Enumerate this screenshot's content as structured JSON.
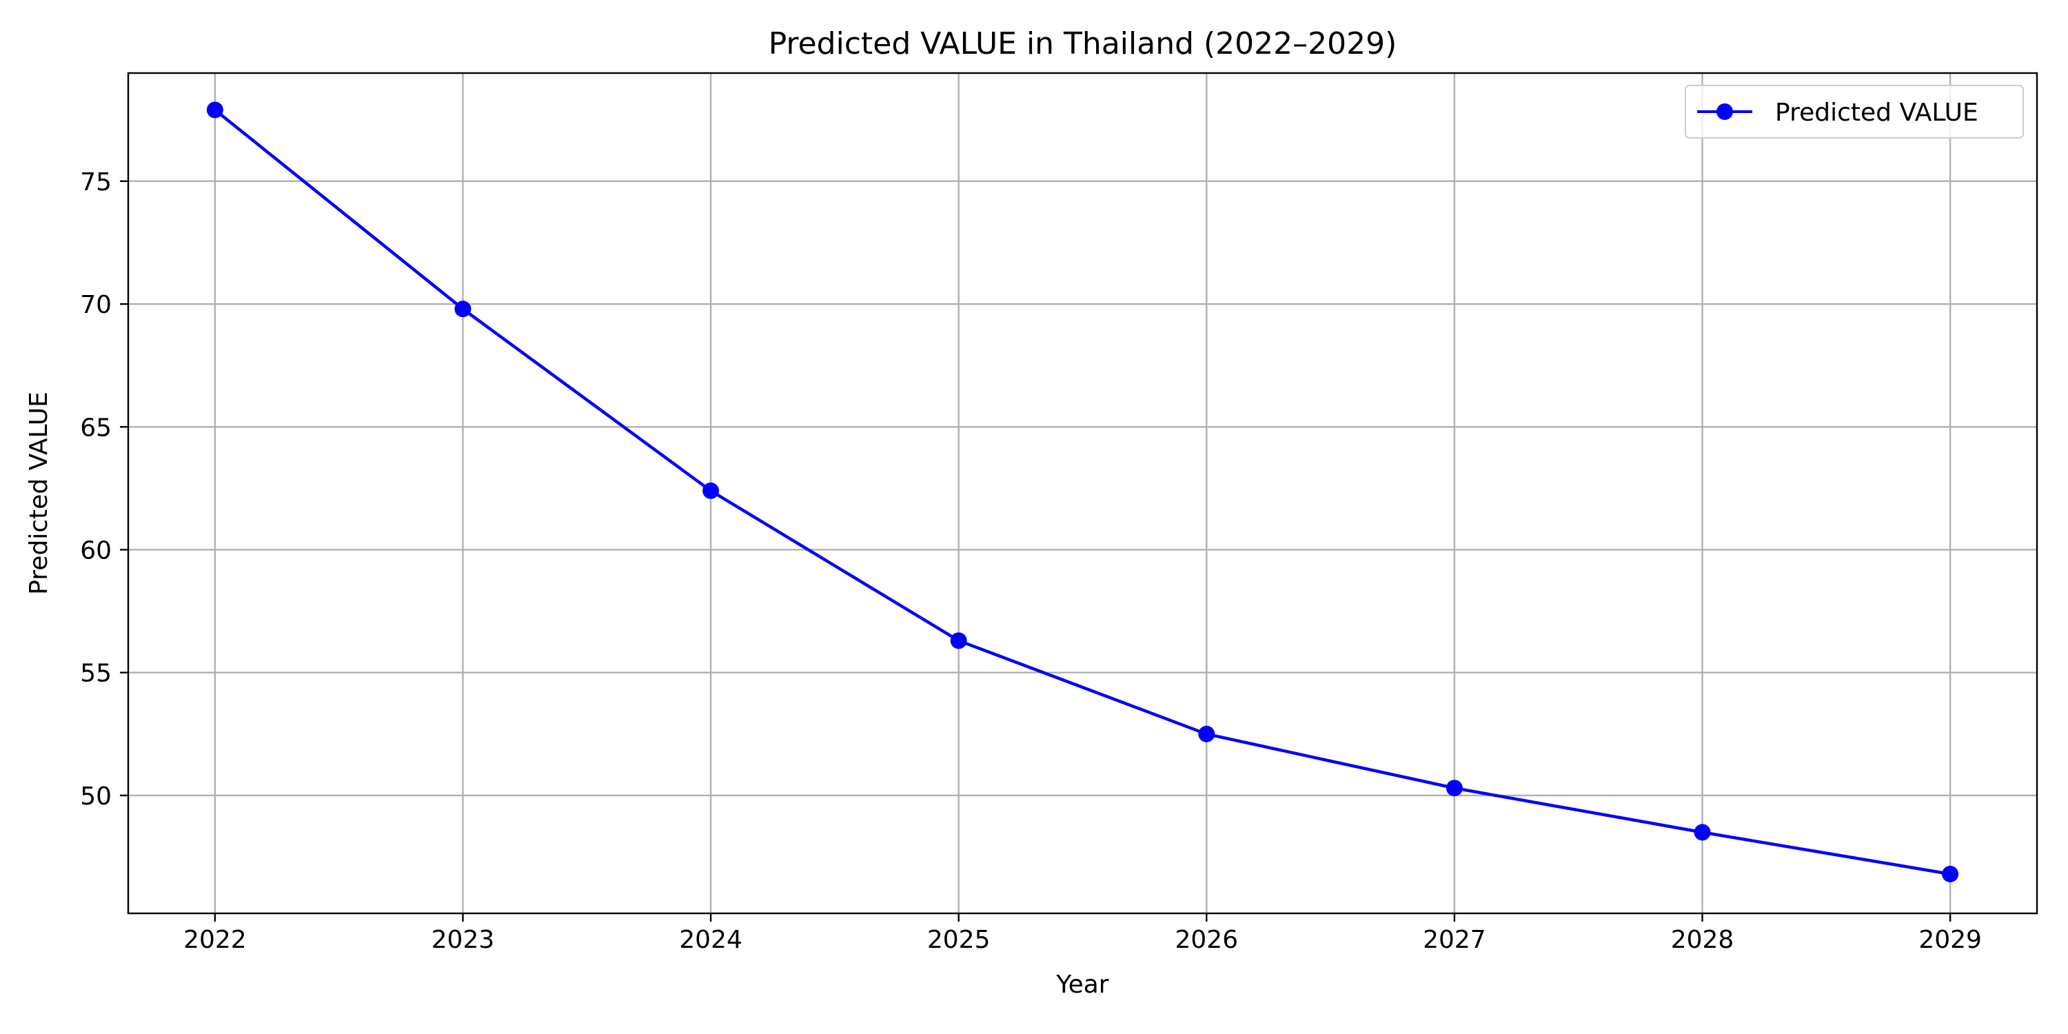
{
  "chart_data": {
    "type": "line",
    "title": "Predicted VALUE in Thailand (2022–2029)",
    "xlabel": "Year",
    "ylabel": "Predicted VALUE",
    "categories": [
      "2022",
      "2023",
      "2024",
      "2025",
      "2026",
      "2027",
      "2028",
      "2029"
    ],
    "x": [
      2022,
      2023,
      2024,
      2025,
      2026,
      2027,
      2028,
      2029
    ],
    "series": [
      {
        "name": "Predicted VALUE",
        "values": [
          77.9,
          69.8,
          62.4,
          56.3,
          52.5,
          50.3,
          48.5,
          46.8
        ],
        "color": "#0000ff",
        "marker": "circle"
      }
    ],
    "xlim": [
      2021.65,
      2029.35
    ],
    "ylim": [
      45.2,
      79.4
    ],
    "yticks": [
      50,
      55,
      60,
      65,
      70,
      75
    ],
    "grid": true,
    "legend": "top-right"
  }
}
